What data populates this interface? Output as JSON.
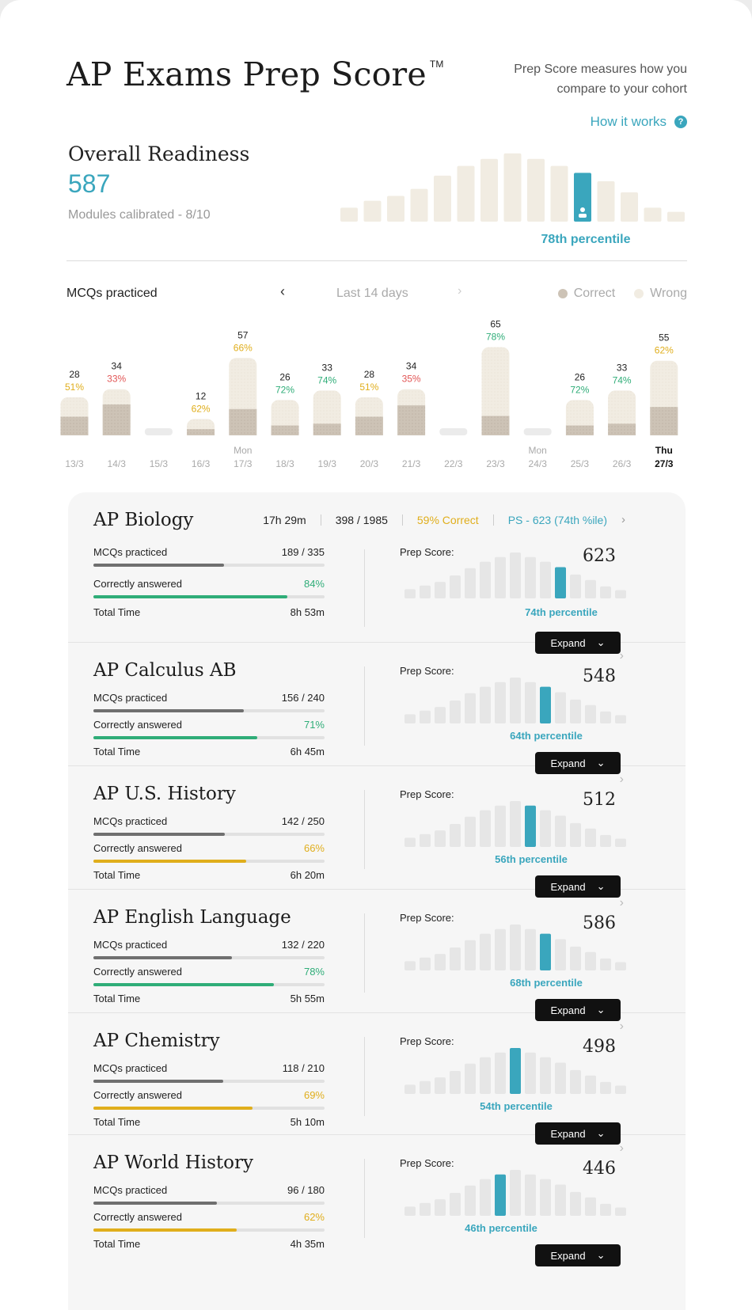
{
  "header": {
    "title": "AP Exams Prep Score",
    "trademark": "TM",
    "blurb_line1": "Prep Score measures how you",
    "blurb_line2": "compare to your cohort",
    "how_it_works": "How it works",
    "help_icon": "?"
  },
  "overall": {
    "label": "Overall Readiness",
    "score": "587",
    "modules": "Modules calibrated - 8/10",
    "percentile_label": "78th percentile",
    "distribution": [
      0.2,
      0.3,
      0.37,
      0.47,
      0.66,
      0.8,
      0.9,
      0.98,
      0.9,
      0.8,
      0.7,
      0.58,
      0.42,
      0.2,
      0.14
    ],
    "highlight_index": 10
  },
  "mcq": {
    "title": "MCQs practiced",
    "period": "Last 14 days",
    "legend_correct": "Correct",
    "legend_wrong": "Wrong",
    "colors": {
      "correct": "#cdc3b6",
      "wrong": "#f1ece2",
      "green": "#2fad78",
      "amber": "#e0ae1c",
      "red": "#e25656"
    },
    "chart_data": {
      "type": "bar",
      "stacked": true,
      "x": [
        "13/3",
        "14/3",
        "15/3",
        "16/3",
        "17/3",
        "18/3",
        "19/3",
        "20/3",
        "21/3",
        "22/3",
        "23/3",
        "24/3",
        "25/3",
        "26/3",
        "27/3"
      ],
      "day_labels": [
        "",
        "",
        "",
        "",
        "Mon",
        "",
        "",
        "",
        "",
        "",
        "",
        "Mon",
        "",
        "",
        "Thu"
      ],
      "totals": [
        28,
        34,
        0,
        12,
        57,
        26,
        33,
        28,
        34,
        0,
        65,
        0,
        26,
        33,
        55
      ],
      "total_labels": [
        "28",
        "34",
        "",
        "12",
        "57",
        "26",
        "33",
        "28",
        "34",
        "",
        "65",
        "",
        "26",
        "33",
        "55"
      ],
      "percent_labels": [
        "51%",
        "33%",
        "",
        "62%",
        "66%",
        "72%",
        "74%",
        "51%",
        "35%",
        "",
        "78%",
        "",
        "72%",
        "74%",
        "62%"
      ],
      "percent_colors": [
        "amber",
        "red",
        "",
        "amber",
        "amber",
        "green",
        "green",
        "amber",
        "red",
        "",
        "green",
        "",
        "green",
        "green",
        "amber"
      ],
      "ylim": [
        0,
        70
      ],
      "highlight_last": true
    }
  },
  "subjects": [
    {
      "name": "AP Biology",
      "stats": {
        "time": "17h 29m",
        "count": "398 / 1985",
        "correct": "59% Correct",
        "ps": "PS - 623 (74th %ile)"
      },
      "mcq_label": "MCQs practiced",
      "mcq_value": "189 / 335",
      "mcq_fraction": 0.564,
      "correct_label": "Correctly answered",
      "correct_value": "84%",
      "correct_fraction": 0.84,
      "correct_color": "#2fad78",
      "time_label": "Total Time",
      "time_value": "8h 53m",
      "ps_label": "Prep Score:",
      "ps_value": "623",
      "percentile": "74th percentile",
      "highlight": 10,
      "expand": "Expand"
    },
    {
      "name": "AP Calculus AB",
      "mcq_label": "MCQs practiced",
      "mcq_value": "156 / 240",
      "mcq_fraction": 0.65,
      "correct_label": "Correctly answered",
      "correct_value": "71%",
      "correct_fraction": 0.71,
      "correct_color": "#2fad78",
      "time_label": "Total Time",
      "time_value": "6h 45m",
      "ps_label": "Prep Score:",
      "ps_value": "548",
      "percentile": "64th percentile",
      "highlight": 9,
      "expand": "Expand"
    },
    {
      "name": "AP U.S. History",
      "mcq_label": "MCQs practiced",
      "mcq_value": "142 / 250",
      "mcq_fraction": 0.568,
      "correct_label": "Correctly answered",
      "correct_value": "66%",
      "correct_fraction": 0.66,
      "correct_color": "#e0ae1c",
      "time_label": "Total Time",
      "time_value": "6h 20m",
      "ps_label": "Prep Score:",
      "ps_value": "512",
      "percentile": "56th percentile",
      "highlight": 8,
      "expand": "Expand"
    },
    {
      "name": "AP English Language",
      "mcq_label": "MCQs practiced",
      "mcq_value": "132 / 220",
      "mcq_fraction": 0.6,
      "correct_label": "Correctly answered",
      "correct_value": "78%",
      "correct_fraction": 0.78,
      "correct_color": "#2fad78",
      "time_label": "Total Time",
      "time_value": "5h 55m",
      "ps_label": "Prep Score:",
      "ps_value": "586",
      "percentile": "68th percentile",
      "highlight": 9,
      "expand": "Expand"
    },
    {
      "name": "AP Chemistry",
      "mcq_label": "MCQs practiced",
      "mcq_value": "118 / 210",
      "mcq_fraction": 0.562,
      "correct_label": "Correctly answered",
      "correct_value": "69%",
      "correct_fraction": 0.69,
      "correct_color": "#e0ae1c",
      "time_label": "Total Time",
      "time_value": "5h 10m",
      "ps_label": "Prep Score:",
      "ps_value": "498",
      "percentile": "54th percentile",
      "highlight": 7,
      "expand": "Expand"
    },
    {
      "name": "AP World History",
      "mcq_label": "MCQs practiced",
      "mcq_value": "96 / 180",
      "mcq_fraction": 0.533,
      "correct_label": "Correctly answered",
      "correct_value": "62%",
      "correct_fraction": 0.62,
      "correct_color": "#e0ae1c",
      "time_label": "Total Time",
      "time_value": "4h 35m",
      "ps_label": "Prep Score:",
      "ps_value": "446",
      "percentile": "46th percentile",
      "highlight": 6,
      "expand": "Expand"
    }
  ],
  "mini_distribution": [
    0.2,
    0.28,
    0.36,
    0.5,
    0.66,
    0.8,
    0.9,
    1.0,
    0.9,
    0.8,
    0.68,
    0.52,
    0.4,
    0.26,
    0.18
  ],
  "colors": {
    "accent": "#3aa6bd",
    "mini_bar": "#e6e6e6",
    "dist_bar": "#f1ece2",
    "mcq_track": "#6f6f6f"
  }
}
